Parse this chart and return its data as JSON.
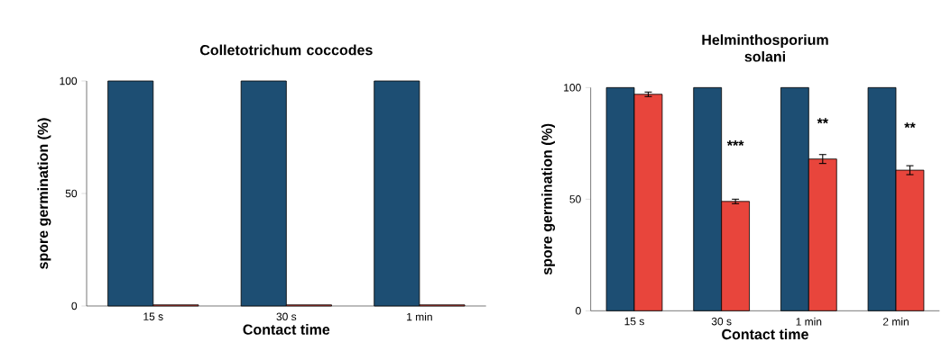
{
  "chart_data": [
    {
      "type": "bar",
      "title": "Colletotrichum coccodes",
      "xlabel": "Contact time",
      "ylabel": "spore germination (%)",
      "categories": [
        "15 s",
        "30 s",
        "1 min"
      ],
      "series": [
        {
          "color": "#1d4e73",
          "values": [
            100,
            100,
            100
          ]
        },
        {
          "color": "#e8453c",
          "values": [
            0.5,
            0.5,
            0.5
          ]
        }
      ],
      "ylim": [
        0,
        100
      ],
      "yticks": [
        0,
        50,
        100
      ]
    },
    {
      "type": "bar",
      "title": "Helminthosporium solani",
      "xlabel": "Contact time",
      "ylabel": "spore germination (%)",
      "categories": [
        "15 s",
        "30 s",
        "1 min",
        "2 min"
      ],
      "series": [
        {
          "color": "#1d4e73",
          "values": [
            100,
            100,
            100,
            100
          ]
        },
        {
          "color": "#e8453c",
          "values": [
            97,
            49,
            68,
            63
          ],
          "errors": [
            1,
            1,
            2,
            2
          ]
        }
      ],
      "ylim": [
        0,
        100
      ],
      "yticks": [
        0,
        50,
        100
      ],
      "annotations": [
        {
          "text": "***",
          "x": "30 s",
          "y": 70
        },
        {
          "text": "**",
          "x": "1 min",
          "y": 80
        },
        {
          "text": "**",
          "x": "2 min",
          "y": 78
        }
      ]
    }
  ]
}
